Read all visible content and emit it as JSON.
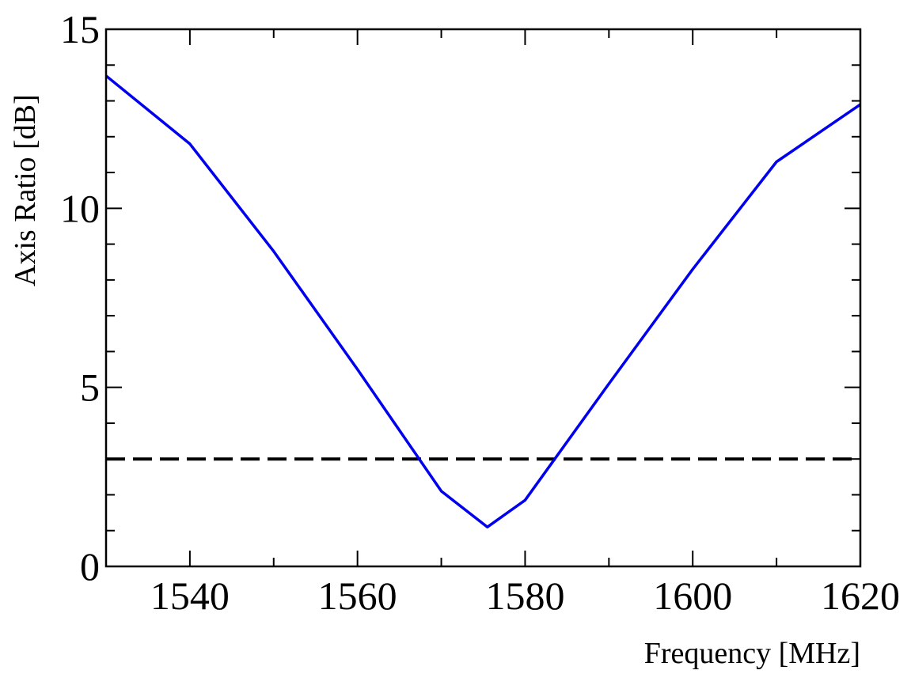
{
  "chart_data": {
    "type": "line",
    "title": "",
    "xlabel": "Frequency [MHz]",
    "ylabel": "Axis Ratio [dB]",
    "xlim": [
      1530,
      1620
    ],
    "ylim": [
      0,
      15
    ],
    "xticks": [
      1540,
      1560,
      1580,
      1600,
      1620
    ],
    "yticks": [
      0,
      5,
      10,
      15
    ],
    "x_minor_step": 10,
    "y_minor_step": 1,
    "grid": false,
    "legend": "none",
    "series": [
      {
        "color": "#0000ee",
        "style": "solid",
        "x": [
          1530,
          1540,
          1550,
          1560,
          1570,
          1575.5,
          1580,
          1590,
          1600,
          1610,
          1620
        ],
        "y": [
          13.7,
          11.8,
          8.8,
          5.5,
          2.1,
          1.1,
          1.85,
          5.1,
          8.3,
          11.3,
          12.9
        ]
      }
    ],
    "reference_lines": [
      {
        "axis": "y",
        "value": 3,
        "color": "#000000",
        "style": "dashed"
      }
    ]
  }
}
